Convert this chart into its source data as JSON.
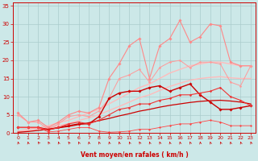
{
  "background_color": "#cce8e8",
  "grid_color": "#aacccc",
  "xlabel": "Vent moyen/en rafales ( km/h )",
  "xlabel_color": "#cc0000",
  "tick_color": "#cc0000",
  "xlim": [
    -0.5,
    23.5
  ],
  "ylim": [
    0,
    36
  ],
  "yticks": [
    0,
    5,
    10,
    15,
    20,
    25,
    30,
    35
  ],
  "xticks": [
    0,
    1,
    2,
    3,
    4,
    5,
    6,
    7,
    8,
    9,
    10,
    11,
    12,
    13,
    14,
    15,
    16,
    17,
    18,
    19,
    20,
    21,
    22,
    23
  ],
  "series": [
    {
      "x": [
        0,
        1,
        2,
        3,
        4,
        5,
        6,
        7,
        8,
        9,
        10,
        11,
        12,
        13,
        14,
        15,
        16,
        17,
        18,
        19,
        20,
        21,
        22,
        23
      ],
      "y": [
        0.5,
        1.0,
        1.5,
        2.0,
        2.8,
        3.5,
        4.5,
        5.5,
        6.5,
        8.0,
        9.5,
        11.0,
        12.5,
        13.5,
        15.0,
        16.5,
        17.5,
        18.5,
        19.0,
        19.5,
        19.5,
        19.0,
        18.5,
        18.5
      ],
      "color": "#ffbbbb",
      "marker": "none",
      "markersize": 0,
      "linewidth": 1.0
    },
    {
      "x": [
        0,
        1,
        2,
        3,
        4,
        5,
        6,
        7,
        8,
        9,
        10,
        11,
        12,
        13,
        14,
        15,
        16,
        17,
        18,
        19,
        20,
        21,
        22,
        23
      ],
      "y": [
        0.3,
        0.6,
        1.0,
        1.4,
        2.0,
        2.6,
        3.4,
        4.2,
        5.0,
        6.2,
        7.3,
        8.5,
        9.7,
        10.5,
        11.7,
        12.8,
        13.7,
        14.5,
        15.0,
        15.3,
        15.5,
        15.2,
        15.0,
        15.0
      ],
      "color": "#ffbbbb",
      "marker": "none",
      "markersize": 0,
      "linewidth": 1.0
    },
    {
      "x": [
        0,
        1,
        2,
        3,
        4,
        5,
        6,
        7,
        8,
        9,
        10,
        11,
        12,
        13,
        14,
        15,
        16,
        17,
        18,
        19,
        20,
        21,
        22,
        23
      ],
      "y": [
        5.5,
        3.0,
        3.5,
        1.5,
        3.0,
        5.0,
        6.0,
        5.5,
        7.0,
        15.0,
        19.0,
        24.0,
        26.0,
        15.0,
        24.0,
        26.0,
        31.0,
        25.0,
        26.5,
        30.0,
        29.5,
        19.5,
        18.5,
        18.5
      ],
      "color": "#ff8888",
      "marker": "D",
      "markersize": 1.8,
      "linewidth": 0.8
    },
    {
      "x": [
        0,
        1,
        2,
        3,
        4,
        5,
        6,
        7,
        8,
        9,
        10,
        11,
        12,
        13,
        14,
        15,
        16,
        17,
        18,
        19,
        20,
        21,
        22,
        23
      ],
      "y": [
        5.0,
        3.0,
        3.0,
        1.0,
        2.5,
        4.5,
        5.0,
        4.5,
        6.0,
        9.5,
        15.0,
        16.0,
        17.5,
        14.0,
        18.0,
        19.5,
        20.0,
        18.0,
        19.5,
        19.5,
        19.0,
        14.0,
        13.0,
        18.5
      ],
      "color": "#ff9999",
      "marker": "D",
      "markersize": 1.5,
      "linewidth": 0.7
    },
    {
      "x": [
        0,
        1,
        2,
        3,
        4,
        5,
        6,
        7,
        8,
        9,
        10,
        11,
        12,
        13,
        14,
        15,
        16,
        17,
        18,
        19,
        20,
        21,
        22,
        23
      ],
      "y": [
        1.5,
        1.5,
        1.5,
        1.0,
        1.5,
        2.0,
        2.5,
        2.5,
        4.5,
        9.5,
        11.0,
        11.5,
        11.5,
        12.5,
        13.0,
        11.5,
        12.5,
        13.5,
        10.5,
        8.5,
        6.5,
        6.5,
        7.0,
        7.5
      ],
      "color": "#cc0000",
      "marker": "D",
      "markersize": 1.8,
      "linewidth": 1.0
    },
    {
      "x": [
        0,
        1,
        2,
        3,
        4,
        5,
        6,
        7,
        8,
        9,
        10,
        11,
        12,
        13,
        14,
        15,
        16,
        17,
        18,
        19,
        20,
        21,
        22,
        23
      ],
      "y": [
        0.2,
        0.4,
        0.7,
        1.0,
        1.4,
        1.8,
        2.3,
        2.8,
        3.4,
        4.0,
        4.7,
        5.3,
        6.0,
        6.5,
        7.1,
        7.6,
        8.0,
        8.4,
        8.7,
        8.9,
        9.0,
        8.8,
        8.5,
        8.0
      ],
      "color": "#cc0000",
      "marker": "none",
      "markersize": 0,
      "linewidth": 0.9
    },
    {
      "x": [
        0,
        1,
        2,
        3,
        4,
        5,
        6,
        7,
        8,
        9,
        10,
        11,
        12,
        13,
        14,
        15,
        16,
        17,
        18,
        19,
        20,
        21,
        22,
        23
      ],
      "y": [
        1.5,
        1.5,
        1.5,
        0.8,
        1.5,
        2.5,
        3.0,
        2.5,
        3.5,
        5.0,
        6.5,
        7.0,
        8.0,
        8.0,
        9.0,
        9.5,
        10.5,
        10.5,
        11.0,
        11.5,
        12.5,
        10.0,
        9.0,
        7.5
      ],
      "color": "#ee3333",
      "marker": "D",
      "markersize": 1.5,
      "linewidth": 0.8
    },
    {
      "x": [
        0,
        1,
        2,
        3,
        4,
        5,
        6,
        7,
        8,
        9,
        10,
        11,
        12,
        13,
        14,
        15,
        16,
        17,
        18,
        19,
        20,
        21,
        22,
        23
      ],
      "y": [
        1.5,
        1.5,
        1.5,
        0.3,
        0.5,
        1.0,
        1.5,
        1.5,
        0.5,
        0.2,
        0.3,
        0.5,
        1.0,
        1.0,
        1.5,
        2.0,
        2.5,
        2.5,
        3.0,
        3.5,
        3.0,
        2.0,
        2.0,
        2.0
      ],
      "color": "#ff4444",
      "marker": "D",
      "markersize": 1.3,
      "linewidth": 0.6
    }
  ],
  "arrow_color": "#cc0000",
  "arrow_angles": [
    200,
    190,
    220,
    210,
    200,
    215,
    205,
    195,
    205,
    200,
    195,
    205,
    210,
    200,
    205,
    195,
    200,
    205,
    195,
    200,
    205,
    195,
    200,
    205
  ]
}
